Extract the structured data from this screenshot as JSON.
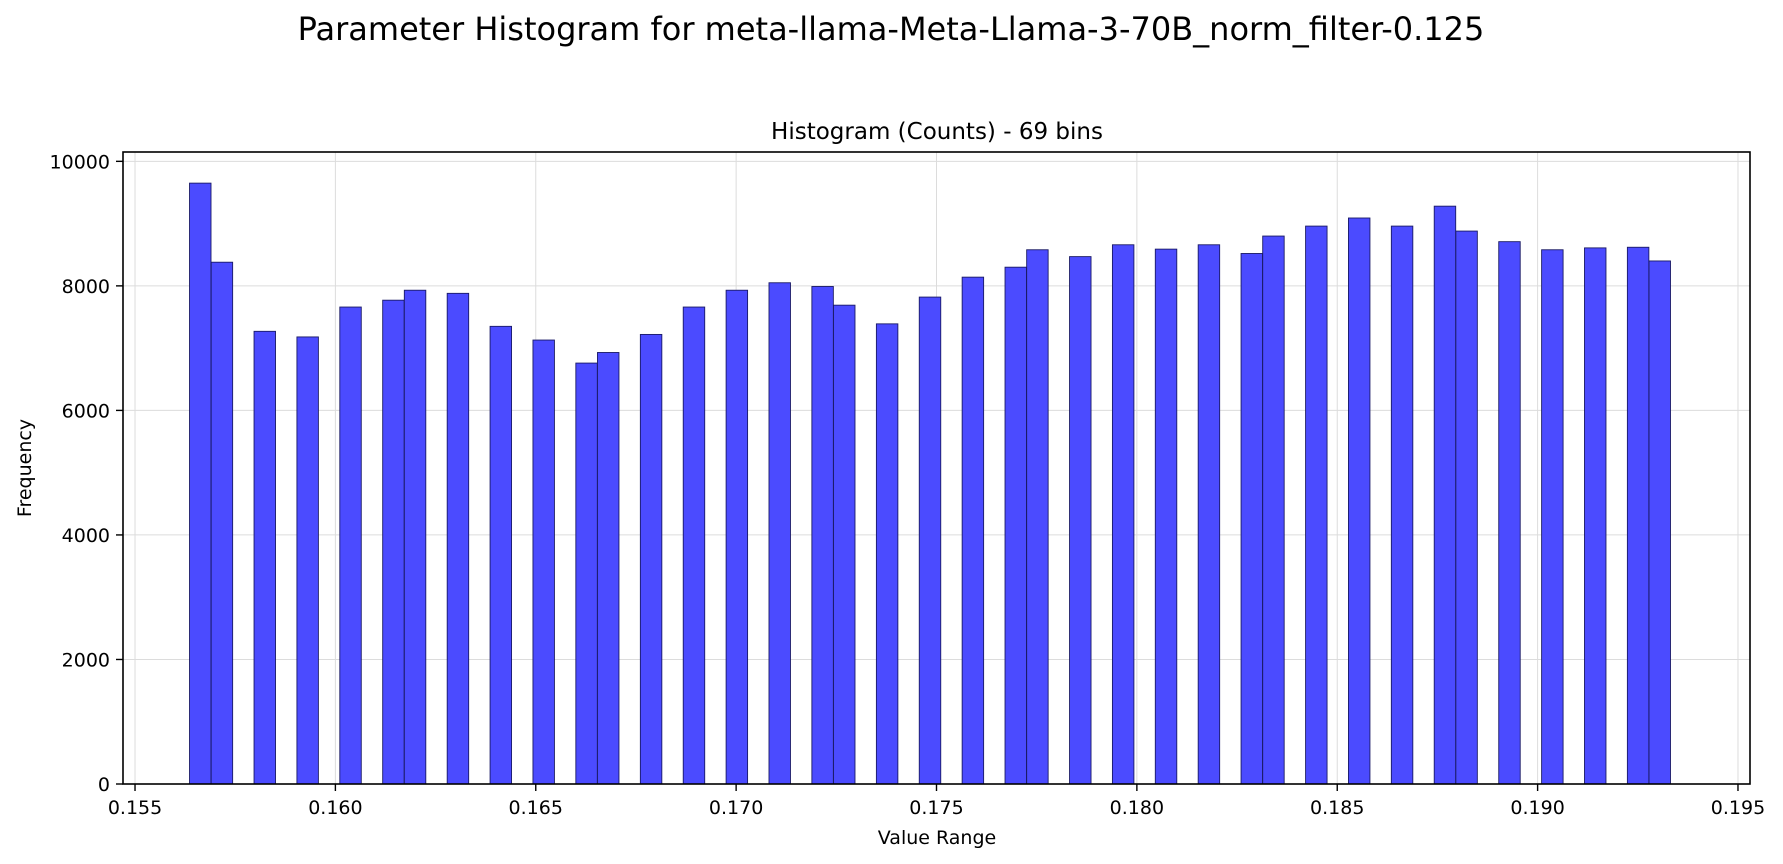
{
  "figure": {
    "suptitle": "Parameter Histogram for meta-llama-Meta-Llama-3-70B_norm_filter-0.125"
  },
  "chart_data": {
    "type": "bar",
    "title": "Histogram (Counts) - 69 bins",
    "xlabel": "Value Range",
    "ylabel": "Frequency",
    "xlim": [
      0.1547,
      0.1953
    ],
    "ylim": [
      0,
      10150
    ],
    "grid": true,
    "bar_color": "#4b4bff",
    "bar_edge_color": "#1a1a66",
    "bin_width": 0.000536,
    "xticks": [
      0.155,
      0.16,
      0.165,
      0.17,
      0.175,
      0.18,
      0.185,
      0.19,
      0.195
    ],
    "xtick_labels": [
      "0.155",
      "0.160",
      "0.165",
      "0.170",
      "0.175",
      "0.180",
      "0.185",
      "0.190",
      "0.195"
    ],
    "yticks": [
      0,
      2000,
      4000,
      6000,
      8000,
      10000
    ],
    "ytick_labels": [
      "0",
      "2000",
      "4000",
      "6000",
      "8000",
      "10000"
    ],
    "bins": [
      {
        "x": 0.15636,
        "count": 9650
      },
      {
        "x": 0.1569,
        "count": 8380
      },
      {
        "x": 0.15797,
        "count": 7270
      },
      {
        "x": 0.15904,
        "count": 7180
      },
      {
        "x": 0.16011,
        "count": 7660
      },
      {
        "x": 0.16118,
        "count": 7770
      },
      {
        "x": 0.16172,
        "count": 7930
      },
      {
        "x": 0.16279,
        "count": 7880
      },
      {
        "x": 0.16386,
        "count": 7350
      },
      {
        "x": 0.16493,
        "count": 7130
      },
      {
        "x": 0.166,
        "count": 6760
      },
      {
        "x": 0.16654,
        "count": 6930
      },
      {
        "x": 0.16761,
        "count": 7220
      },
      {
        "x": 0.16868,
        "count": 7660
      },
      {
        "x": 0.16975,
        "count": 7930
      },
      {
        "x": 0.17082,
        "count": 8050
      },
      {
        "x": 0.17189,
        "count": 7990
      },
      {
        "x": 0.17243,
        "count": 7690
      },
      {
        "x": 0.1735,
        "count": 7390
      },
      {
        "x": 0.17457,
        "count": 7820
      },
      {
        "x": 0.17564,
        "count": 8140
      },
      {
        "x": 0.17671,
        "count": 8300
      },
      {
        "x": 0.17725,
        "count": 8580
      },
      {
        "x": 0.17832,
        "count": 8470
      },
      {
        "x": 0.17939,
        "count": 8660
      },
      {
        "x": 0.18046,
        "count": 8590
      },
      {
        "x": 0.18153,
        "count": 8660
      },
      {
        "x": 0.1826,
        "count": 8520
      },
      {
        "x": 0.18314,
        "count": 8800
      },
      {
        "x": 0.18421,
        "count": 8960
      },
      {
        "x": 0.18528,
        "count": 9090
      },
      {
        "x": 0.18635,
        "count": 8960
      },
      {
        "x": 0.18742,
        "count": 9280
      },
      {
        "x": 0.18796,
        "count": 8880
      },
      {
        "x": 0.18903,
        "count": 8710
      },
      {
        "x": 0.1901,
        "count": 8580
      },
      {
        "x": 0.19117,
        "count": 8610
      },
      {
        "x": 0.19224,
        "count": 8620
      },
      {
        "x": 0.19278,
        "count": 8400
      }
    ]
  }
}
